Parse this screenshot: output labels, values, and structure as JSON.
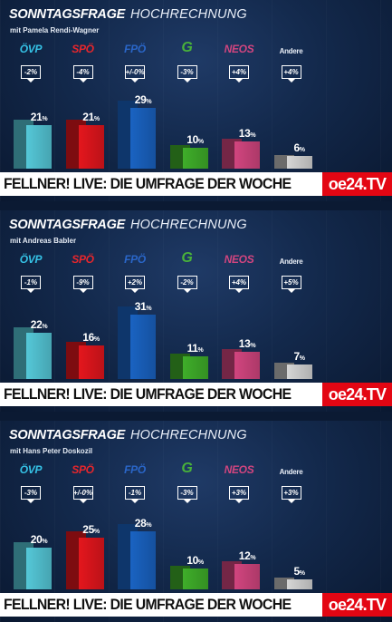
{
  "colors": {
    "ÖVP": "#55c8d8",
    "SPÖ": "#e4161d",
    "FPÖ": "#1a63c2",
    "Grüne": "#3fae2a",
    "NEOS": "#d2457f",
    "Andere": "#d6d6d6"
  },
  "footer": {
    "text": "FELLNER! LIVE: DIE UMFRAGE DER WOCHE",
    "brand": "oe24.TV"
  },
  "chart_data": [
    {
      "type": "bar",
      "title": "SONNTAGSFRAGE",
      "title_suffix": "HOCHRECHNUNG",
      "subtitle": "mit Pamela Rendi-Wagner",
      "categories": [
        "ÖVP",
        "SPÖ",
        "FPÖ",
        "Grüne",
        "NEOS",
        "Andere"
      ],
      "category_labels": [
        "ÖVP",
        "SPÖ",
        "FPÖ",
        "G",
        "NEOS",
        "Andere"
      ],
      "values": [
        21,
        21,
        29,
        10,
        13,
        6
      ],
      "value_labels": [
        "21",
        "21",
        "29",
        "10",
        "13",
        "6"
      ],
      "changes": [
        "-2%",
        "-4%",
        "+/-0%",
        "-3%",
        "+4%",
        "+4%"
      ]
    },
    {
      "type": "bar",
      "title": "SONNTAGSFRAGE",
      "title_suffix": "HOCHRECHNUNG",
      "subtitle": "mit Andreas Babler",
      "categories": [
        "ÖVP",
        "SPÖ",
        "FPÖ",
        "Grüne",
        "NEOS",
        "Andere"
      ],
      "category_labels": [
        "ÖVP",
        "SPÖ",
        "FPÖ",
        "G",
        "NEOS",
        "Andere"
      ],
      "values": [
        22,
        16,
        31,
        11,
        13,
        7
      ],
      "value_labels": [
        "22",
        "16",
        "31",
        "11",
        "13",
        "7"
      ],
      "changes": [
        "-1%",
        "-9%",
        "+2%",
        "-2%",
        "+4%",
        "+5%"
      ]
    },
    {
      "type": "bar",
      "title": "SONNTAGSFRAGE",
      "title_suffix": "HOCHRECHNUNG",
      "subtitle": "mit Hans Peter Doskozil",
      "categories": [
        "ÖVP",
        "SPÖ",
        "FPÖ",
        "Grüne",
        "NEOS",
        "Andere"
      ],
      "category_labels": [
        "ÖVP",
        "SPÖ",
        "FPÖ",
        "G",
        "NEOS",
        "Andere"
      ],
      "values": [
        20,
        25,
        28,
        10,
        12,
        5
      ],
      "value_labels": [
        "20",
        "25",
        "28",
        "10",
        "12",
        "5"
      ],
      "changes": [
        "-3%",
        "+/-0%",
        "-1%",
        "-3%",
        "+3%",
        "+3%"
      ]
    }
  ]
}
